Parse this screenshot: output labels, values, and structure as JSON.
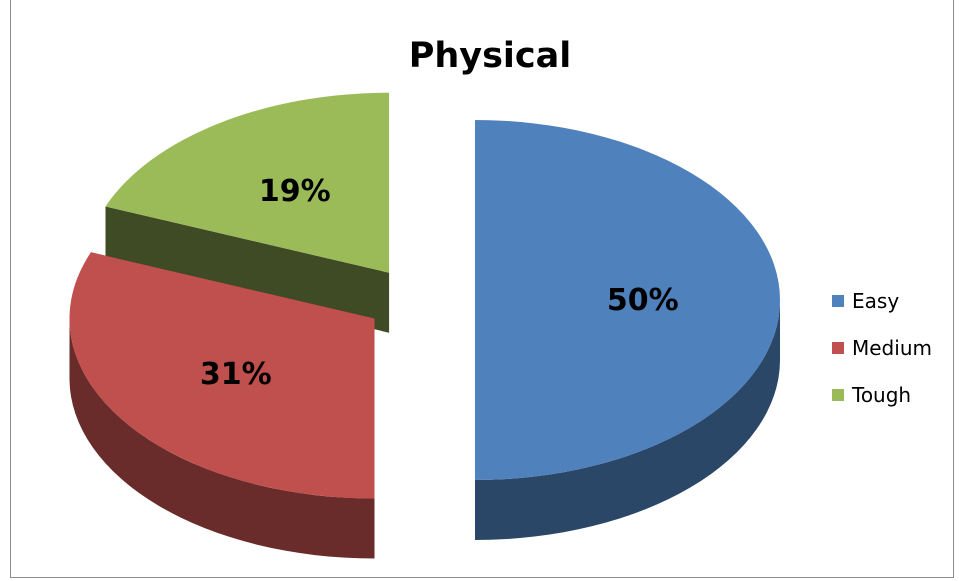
{
  "chart_data": {
    "type": "pie",
    "title": "Physical",
    "three_d": true,
    "exploded": true,
    "legend_position": "right",
    "slices": [
      {
        "label": "Easy",
        "value": 50,
        "display": "50%",
        "color": "#4f81bd"
      },
      {
        "label": "Medium",
        "value": 31,
        "display": "31%",
        "color": "#c0504d"
      },
      {
        "label": "Tough",
        "value": 19,
        "display": "19%",
        "color": "#9bbb59"
      }
    ]
  }
}
